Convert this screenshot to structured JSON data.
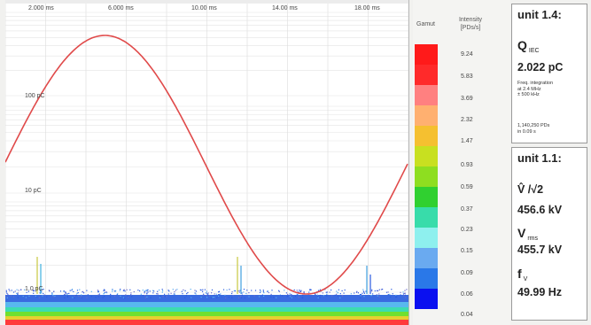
{
  "plot": {
    "time_labels": [
      "2.000 ms",
      "6.000 ms",
      "10.00 ms",
      "14.00 ms",
      "18.00 ms"
    ],
    "level_labels": [
      "100 pC",
      "10 pC",
      "1.0 pC"
    ]
  },
  "gamut_legend": {
    "gamut_header": "Gamut",
    "intensity_header_line1": "Intensity",
    "intensity_header_line2": "[PDs/s]",
    "colors": [
      "#ff1a1a",
      "#ff2a2a",
      "#ff8080",
      "#ffb070",
      "#f5c030",
      "#c8e020",
      "#8ede20",
      "#30d030",
      "#38dcaa",
      "#8ef0ee",
      "#6aaaf0",
      "#2a78e8",
      "#0a10f0"
    ],
    "values": [
      "9.24",
      "5.83",
      "3.69",
      "2.32",
      "1.47",
      "0.93",
      "0.59",
      "0.37",
      "0.23",
      "0.15",
      "0.09",
      "0.06",
      "0.04"
    ]
  },
  "unit_14": {
    "title": "unit 1.4:",
    "q_symbol": "Q",
    "q_subscript": "IEC",
    "q_value": "2.022 pC",
    "note_line1": "Freq. integration",
    "note_line2": "at 2.4 MHz",
    "note_line3": "± 500 kHz",
    "count_line1": "1,140,250 PDs",
    "count_line2": "in 0.09 s"
  },
  "unit_11": {
    "title": "unit 1.1:",
    "v_label": "V̂ /√2",
    "v_value": "456.6 kV",
    "vrms_symbol": "V",
    "vrms_subscript": "rms",
    "vrms_value": "455.7 kV",
    "f_symbol": "f",
    "f_subscript": "V",
    "f_value": "49.99 Hz"
  }
}
